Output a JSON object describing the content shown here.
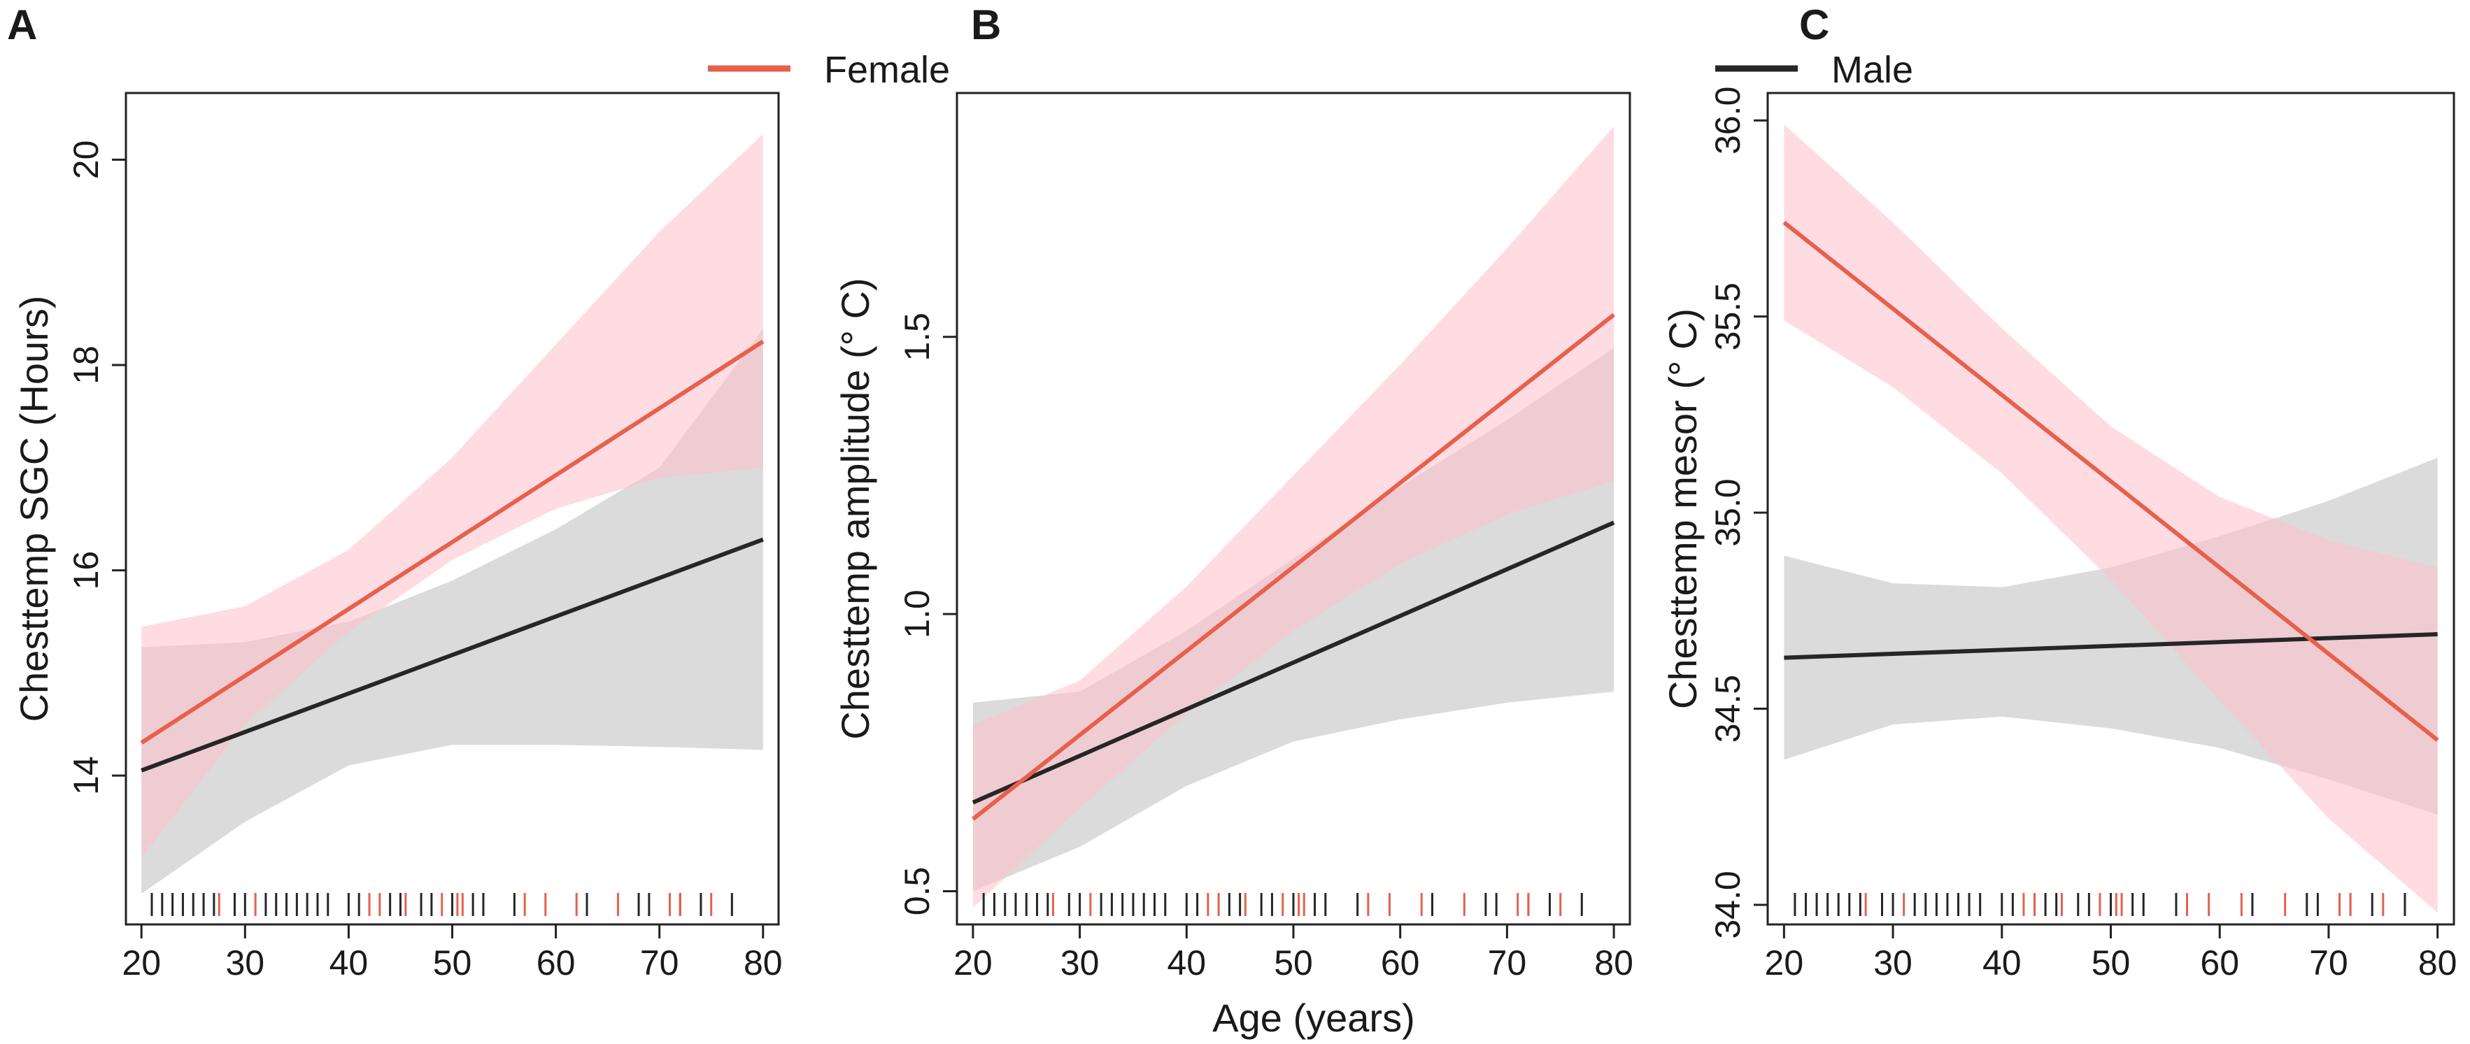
{
  "colors": {
    "female_line": "#E8604C",
    "female_band": "#FFC0CB",
    "male_line": "#262626",
    "male_band": "#BEBEBE",
    "axis": "#222222",
    "background": "#FFFFFF"
  },
  "legend": {
    "items": [
      {
        "name": "Female",
        "color": "#E8604C"
      },
      {
        "name": "Male",
        "color": "#262626"
      }
    ]
  },
  "shared_xlabel": "Age (years)",
  "chart_data": [
    {
      "panel": "A",
      "type": "line",
      "ylabel": "Chesttemp SGC (Hours)",
      "xlim": [
        18.5,
        81.5
      ],
      "ylim": [
        12.55,
        20.65
      ],
      "xticks": [
        "20",
        "30",
        "40",
        "50",
        "60",
        "70",
        "80"
      ],
      "yticks": [
        "14",
        "16",
        "18",
        "20"
      ],
      "series": [
        {
          "name": "Female",
          "x": [
            20,
            80
          ],
          "y": [
            14.32,
            18.23
          ],
          "ci_x": [
            20,
            30,
            40,
            50,
            60,
            70,
            80
          ],
          "ci_lower": [
            13.2,
            14.5,
            15.4,
            16.1,
            16.6,
            16.9,
            17.0
          ],
          "ci_upper": [
            15.45,
            15.65,
            16.2,
            17.1,
            18.2,
            19.3,
            20.25
          ]
        },
        {
          "name": "Male",
          "x": [
            20,
            80
          ],
          "y": [
            14.05,
            16.3
          ],
          "ci_x": [
            20,
            30,
            40,
            50,
            60,
            70,
            80
          ],
          "ci_lower": [
            12.85,
            13.55,
            14.1,
            14.3,
            14.3,
            14.28,
            14.25
          ],
          "ci_upper": [
            15.25,
            15.3,
            15.5,
            15.9,
            16.4,
            17.0,
            18.35
          ]
        }
      ],
      "rug_male": [
        21,
        22,
        23,
        24,
        25,
        26,
        27,
        29,
        30,
        32,
        33,
        34,
        35,
        36,
        37,
        38,
        40,
        41,
        44,
        45,
        47,
        48,
        50,
        52,
        53,
        56,
        63,
        68,
        69,
        72,
        74,
        77
      ],
      "rug_female": [
        27.5,
        31,
        42,
        43,
        45.5,
        49,
        50.5,
        51,
        57,
        59,
        62,
        66,
        71,
        72,
        75
      ]
    },
    {
      "panel": "B",
      "type": "line",
      "ylabel": "Chesttemp amplitude (° C)",
      "xlim": [
        18.5,
        81.5
      ],
      "ylim": [
        0.44,
        1.94
      ],
      "xticks": [
        "20",
        "30",
        "40",
        "50",
        "60",
        "70",
        "80"
      ],
      "yticks": [
        "0.5",
        "1.0",
        "1.5"
      ],
      "series": [
        {
          "name": "Female",
          "x": [
            20,
            80
          ],
          "y": [
            0.63,
            1.54
          ],
          "ci_x": [
            20,
            30,
            40,
            50,
            60,
            70,
            80
          ],
          "ci_lower": [
            0.47,
            0.65,
            0.82,
            0.97,
            1.09,
            1.18,
            1.24
          ],
          "ci_upper": [
            0.8,
            0.88,
            1.05,
            1.25,
            1.45,
            1.66,
            1.88
          ]
        },
        {
          "name": "Male",
          "x": [
            20,
            80
          ],
          "y": [
            0.66,
            1.165
          ],
          "ci_x": [
            20,
            30,
            40,
            50,
            60,
            70,
            80
          ],
          "ci_lower": [
            0.5,
            0.58,
            0.69,
            0.77,
            0.81,
            0.84,
            0.86
          ],
          "ci_upper": [
            0.84,
            0.86,
            0.97,
            1.1,
            1.23,
            1.35,
            1.48
          ]
        }
      ],
      "rug_male": [
        21,
        22,
        23,
        24,
        25,
        26,
        27,
        29,
        30,
        32,
        33,
        34,
        35,
        36,
        37,
        38,
        40,
        41,
        44,
        45,
        47,
        48,
        50,
        52,
        53,
        56,
        63,
        68,
        69,
        72,
        74,
        77
      ],
      "rug_female": [
        27.5,
        31,
        42,
        43,
        45.5,
        49,
        50.5,
        51,
        57,
        59,
        62,
        66,
        71,
        72,
        75
      ]
    },
    {
      "panel": "C",
      "type": "line",
      "ylabel": "Chesttemp mesor (° C)",
      "xlim": [
        18.5,
        81.5
      ],
      "ylim": [
        33.95,
        36.07
      ],
      "xticks": [
        "20",
        "30",
        "40",
        "50",
        "60",
        "70",
        "80"
      ],
      "yticks": [
        "34.0",
        "34.5",
        "35.0",
        "35.5",
        "36.0"
      ],
      "series": [
        {
          "name": "Female",
          "x": [
            20,
            80
          ],
          "y": [
            35.74,
            34.42
          ],
          "ci_x": [
            20,
            30,
            40,
            50,
            60,
            70,
            80
          ],
          "ci_lower": [
            35.49,
            35.32,
            35.1,
            34.83,
            34.52,
            34.22,
            33.98
          ],
          "ci_upper": [
            35.99,
            35.74,
            35.47,
            35.22,
            35.04,
            34.93,
            34.86
          ]
        },
        {
          "name": "Male",
          "x": [
            20,
            80
          ],
          "y": [
            34.63,
            34.69
          ],
          "ci_x": [
            20,
            30,
            40,
            50,
            60,
            70,
            80
          ],
          "ci_lower": [
            34.37,
            34.46,
            34.48,
            34.45,
            34.4,
            34.32,
            34.23
          ],
          "ci_upper": [
            34.89,
            34.82,
            34.81,
            34.86,
            34.94,
            35.03,
            35.14
          ]
        }
      ],
      "rug_male": [
        21,
        22,
        23,
        24,
        25,
        26,
        27,
        29,
        30,
        32,
        33,
        34,
        35,
        36,
        37,
        38,
        40,
        41,
        44,
        45,
        47,
        48,
        50,
        52,
        53,
        56,
        63,
        68,
        69,
        72,
        74,
        77
      ],
      "rug_female": [
        27.5,
        31,
        42,
        43,
        45.5,
        49,
        50.5,
        51,
        57,
        59,
        62,
        66,
        71,
        72,
        75
      ]
    }
  ]
}
